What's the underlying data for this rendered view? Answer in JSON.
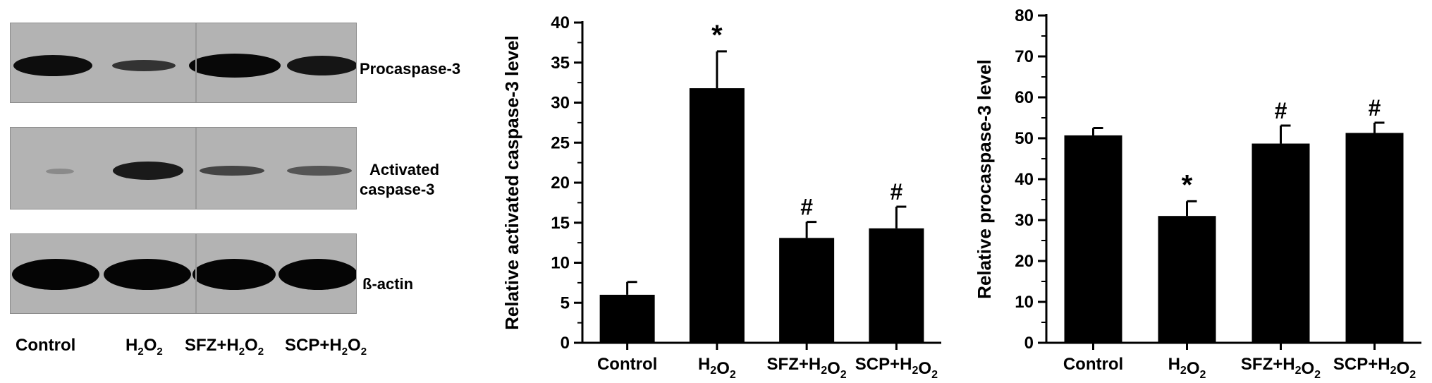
{
  "blot": {
    "protein_labels": [
      "Procaspase-3",
      "Activated",
      "caspase-3",
      "ß-actin"
    ],
    "lanes": [
      {
        "label": "Control",
        "sub": ""
      },
      {
        "label": "H",
        "sub": "2",
        "label2": "O",
        "sub2": "2"
      },
      {
        "label": "SFZ+H",
        "sub": "2",
        "label2": "O",
        "sub2": "2"
      },
      {
        "label": "SCP+H",
        "sub": "2",
        "label2": "O",
        "sub2": "2"
      }
    ]
  },
  "chart_data": [
    {
      "type": "bar",
      "categories": [
        "Control",
        "H2O2",
        "SFZ+H2O2",
        "SCP+H2O2"
      ],
      "values": [
        6.0,
        31.8,
        13.1,
        14.3
      ],
      "errors": [
        1.6,
        4.6,
        2.0,
        2.7
      ],
      "annotations": [
        "",
        "*",
        "#",
        "#"
      ],
      "ylabel": "Relative activated caspase-3 level",
      "ylim": [
        0,
        40
      ],
      "yticks": [
        0,
        5,
        10,
        15,
        20,
        25,
        30,
        35,
        40
      ],
      "color": "#000000"
    },
    {
      "type": "bar",
      "categories": [
        "Control",
        "H2O2",
        "SFZ+H2O2",
        "SCP+H2O2"
      ],
      "values": [
        50.7,
        31.0,
        48.7,
        51.3
      ],
      "errors": [
        1.8,
        3.6,
        4.4,
        2.5
      ],
      "annotations": [
        "",
        "*",
        "#",
        "#"
      ],
      "ylabel": "Relative procaspase-3 level",
      "ylim": [
        0,
        80
      ],
      "yticks": [
        0,
        10,
        20,
        30,
        40,
        50,
        60,
        70,
        80
      ],
      "color": "#000000"
    }
  ]
}
